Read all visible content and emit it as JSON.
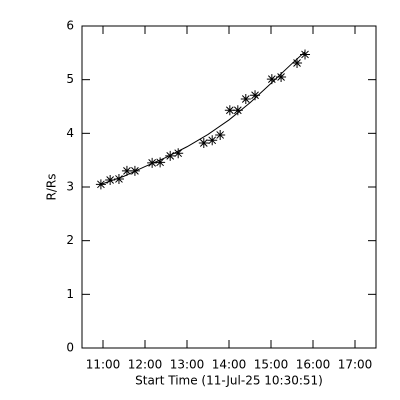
{
  "chart_data": {
    "type": "scatter",
    "x_label": "Start Time (11-Jul-25 10:30:51)",
    "y_label": "R/Rs",
    "marker": "asterisk",
    "color": "#000000",
    "x": [
      10.95,
      11.17,
      11.38,
      11.57,
      11.76,
      12.17,
      12.36,
      12.6,
      12.79,
      13.4,
      13.6,
      13.79,
      14.02,
      14.21,
      14.4,
      14.62,
      15.02,
      15.24,
      15.62,
      15.81
    ],
    "values": [
      3.05,
      3.13,
      3.15,
      3.3,
      3.3,
      3.45,
      3.46,
      3.58,
      3.63,
      3.82,
      3.87,
      3.97,
      4.43,
      4.43,
      4.64,
      4.71,
      5.01,
      5.05,
      5.31,
      5.47
    ],
    "fit": {
      "x": [
        10.95,
        11.5,
        12,
        12.5,
        13,
        13.5,
        14,
        14.5,
        15,
        15.5,
        15.81
      ],
      "values": [
        3.05,
        3.2,
        3.38,
        3.55,
        3.75,
        3.98,
        4.25,
        4.57,
        4.93,
        5.3,
        5.52
      ]
    },
    "xlim": [
      10.5,
      17.5
    ],
    "xticks": [
      {
        "value": 11,
        "label": "11:00"
      },
      {
        "value": 12,
        "label": "12:00"
      },
      {
        "value": 13,
        "label": "13:00"
      },
      {
        "value": 14,
        "label": "14:00"
      },
      {
        "value": 15,
        "label": "15:00"
      },
      {
        "value": 16,
        "label": "16:00"
      },
      {
        "value": 17,
        "label": "17:00"
      }
    ],
    "ylim": [
      0,
      6
    ],
    "yticks": [
      0,
      1,
      2,
      3,
      4,
      5,
      6
    ]
  }
}
